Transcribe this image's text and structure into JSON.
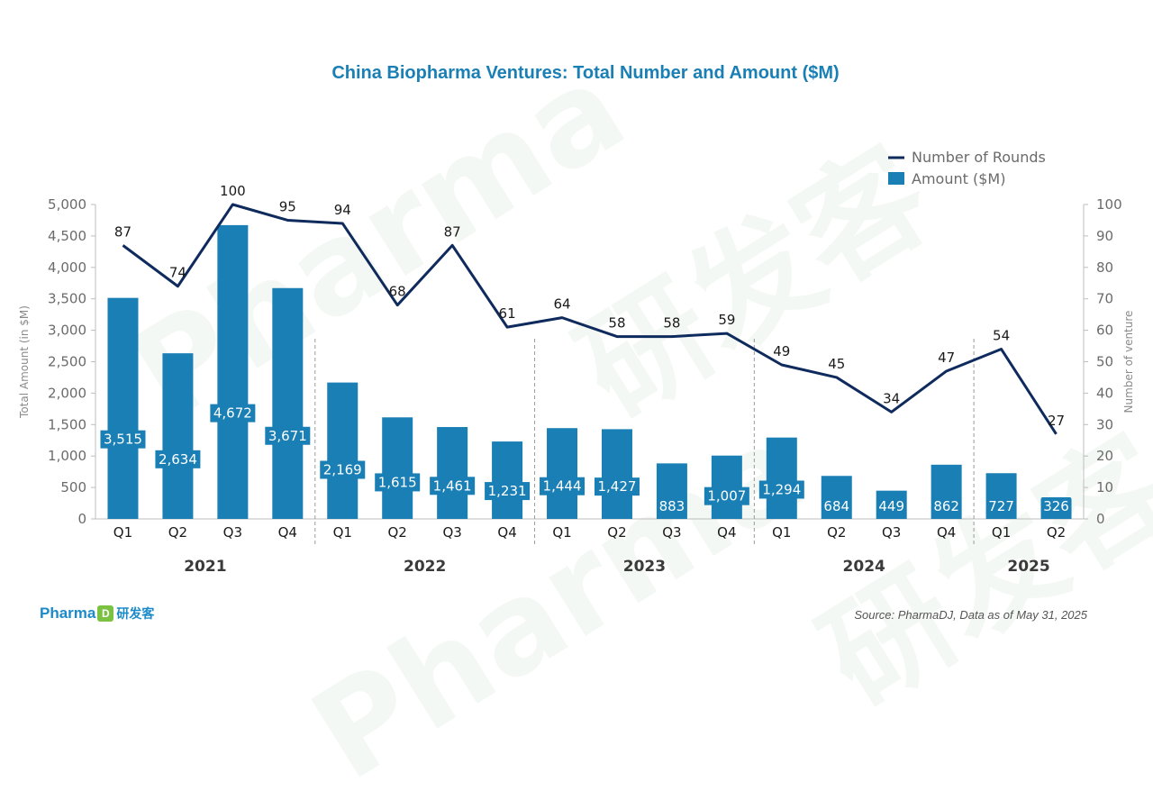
{
  "watermark": {
    "brand": "Pharma",
    "cn": "研发客"
  },
  "chart_data": {
    "type": "bar",
    "title": "China Biopharma Ventures: Total Number and Amount ($M)",
    "categories": [
      "Q1",
      "Q2",
      "Q3",
      "Q4",
      "Q1",
      "Q2",
      "Q3",
      "Q4",
      "Q1",
      "Q2",
      "Q3",
      "Q4",
      "Q1",
      "Q2",
      "Q3",
      "Q4",
      "Q1",
      "Q2"
    ],
    "groups": [
      {
        "label": "2021",
        "count": 4
      },
      {
        "label": "2022",
        "count": 4
      },
      {
        "label": "2023",
        "count": 4
      },
      {
        "label": "2024",
        "count": 4
      },
      {
        "label": "2025",
        "count": 2
      }
    ],
    "series": [
      {
        "name": "Amount ($M)",
        "type": "bar",
        "axis": "left",
        "color": "#1a7fb5",
        "values": [
          3515,
          2634,
          4672,
          3671,
          2169,
          1615,
          1461,
          1231,
          1444,
          1427,
          883,
          1007,
          1294,
          684,
          449,
          862,
          727,
          326
        ],
        "labels": [
          "3,515",
          "2,634",
          "4,672",
          "3,671",
          "2,169",
          "1,615",
          "1,461",
          "1,231",
          "1,444",
          "1,427",
          "883",
          "1,007",
          "1,294",
          "684",
          "449",
          "862",
          "727",
          "326"
        ]
      },
      {
        "name": "Number of Rounds",
        "type": "line",
        "axis": "right",
        "color": "#0f2a5c",
        "values": [
          87,
          74,
          100,
          95,
          94,
          68,
          87,
          61,
          64,
          58,
          58,
          59,
          49,
          45,
          34,
          47,
          54,
          27
        ]
      }
    ],
    "y_left": {
      "label": "Total Amount (in $M)",
      "min": 0,
      "max": 5000,
      "ticks": [
        0,
        500,
        1000,
        1500,
        2000,
        2500,
        3000,
        3500,
        4000,
        4500,
        5000
      ],
      "tick_labels": [
        "0",
        "500",
        "1,000",
        "1,500",
        "2,000",
        "2,500",
        "3,000",
        "3,500",
        "4,000",
        "4,500",
        "5,000"
      ]
    },
    "y_right": {
      "label": "Number of venture",
      "min": 0,
      "max": 100,
      "ticks": [
        0,
        10,
        20,
        30,
        40,
        50,
        60,
        70,
        80,
        90,
        100
      ],
      "tick_labels": [
        "0",
        "10",
        "20",
        "30",
        "40",
        "50",
        "60",
        "70",
        "80",
        "90",
        "100"
      ]
    },
    "legend": [
      "Number of Rounds",
      "Amount ($M)"
    ],
    "legend_position": "top-right",
    "grid": false
  },
  "footer": {
    "logo_text": "Pharma",
    "logo_mark": "D",
    "logo_cn": "研发客",
    "source": "Source: PharmaDJ, Data as of May 31, 2025"
  }
}
